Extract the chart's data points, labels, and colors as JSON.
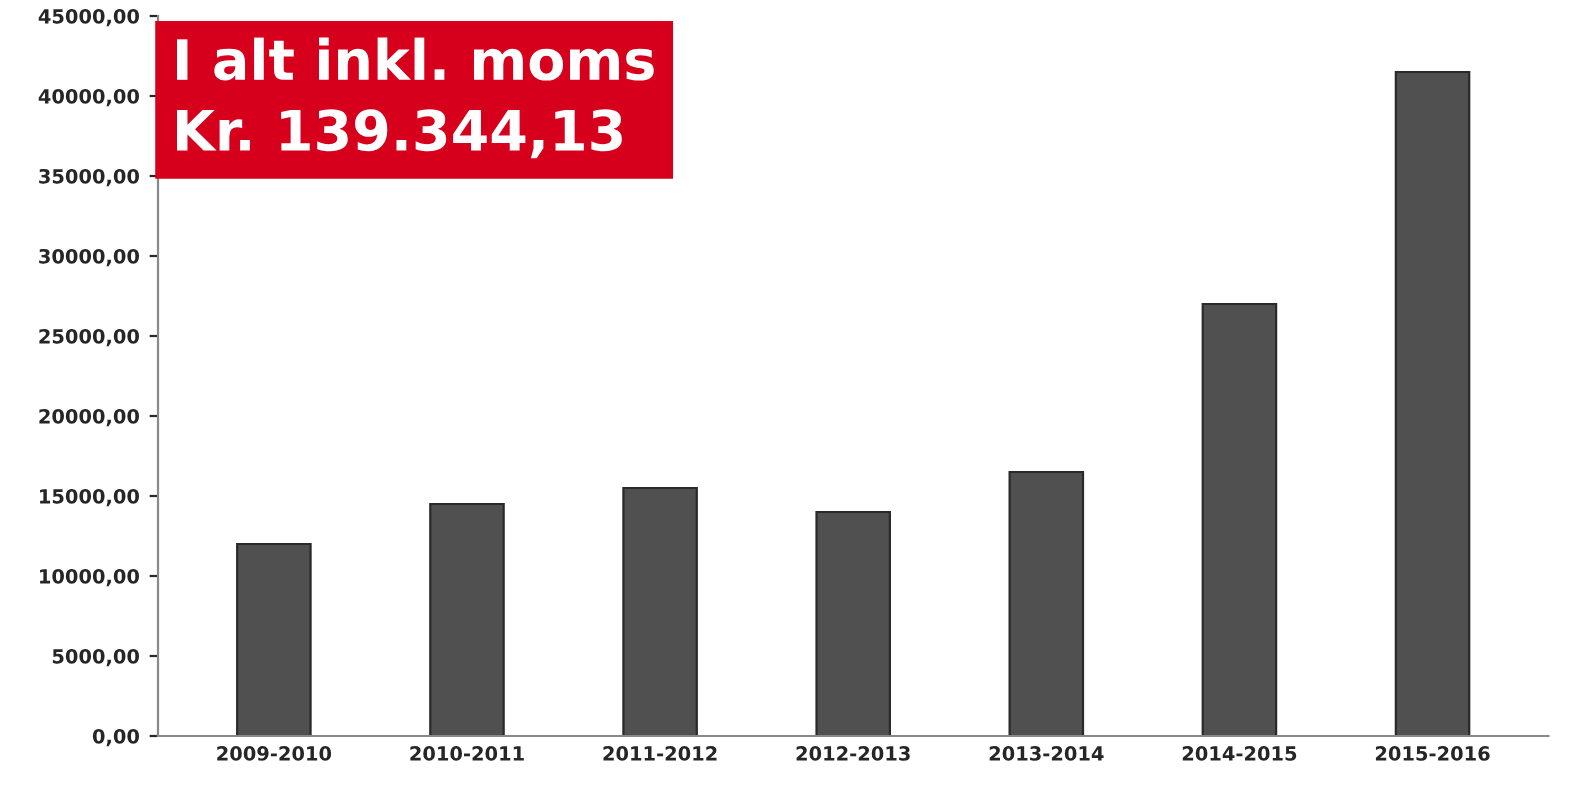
{
  "chart_data": {
    "type": "bar",
    "categories": [
      "2009-2010",
      "2010-2011",
      "2011-2012",
      "2012-2013",
      "2013-2014",
      "2014-2015",
      "2015-2016"
    ],
    "values": [
      12000,
      14500,
      15500,
      14000,
      16500,
      27000,
      41500
    ],
    "color": "#505050",
    "ylim": [
      0,
      45000
    ],
    "yticks": [
      {
        "value": 0,
        "label": "0,00"
      },
      {
        "value": 5000,
        "label": "5000,00"
      },
      {
        "value": 10000,
        "label": "10000,00"
      },
      {
        "value": 15000,
        "label": "15000,00"
      },
      {
        "value": 20000,
        "label": "20000,00"
      },
      {
        "value": 25000,
        "label": "25000,00"
      },
      {
        "value": 30000,
        "label": "30000,00"
      },
      {
        "value": 35000,
        "label": "35000,00"
      },
      {
        "value": 40000,
        "label": "40000,00"
      },
      {
        "value": 45000,
        "label": "45000,00"
      }
    ],
    "annotations": [
      "I alt inkl. moms\nKr. 139.344,13"
    ],
    "grid": false
  }
}
